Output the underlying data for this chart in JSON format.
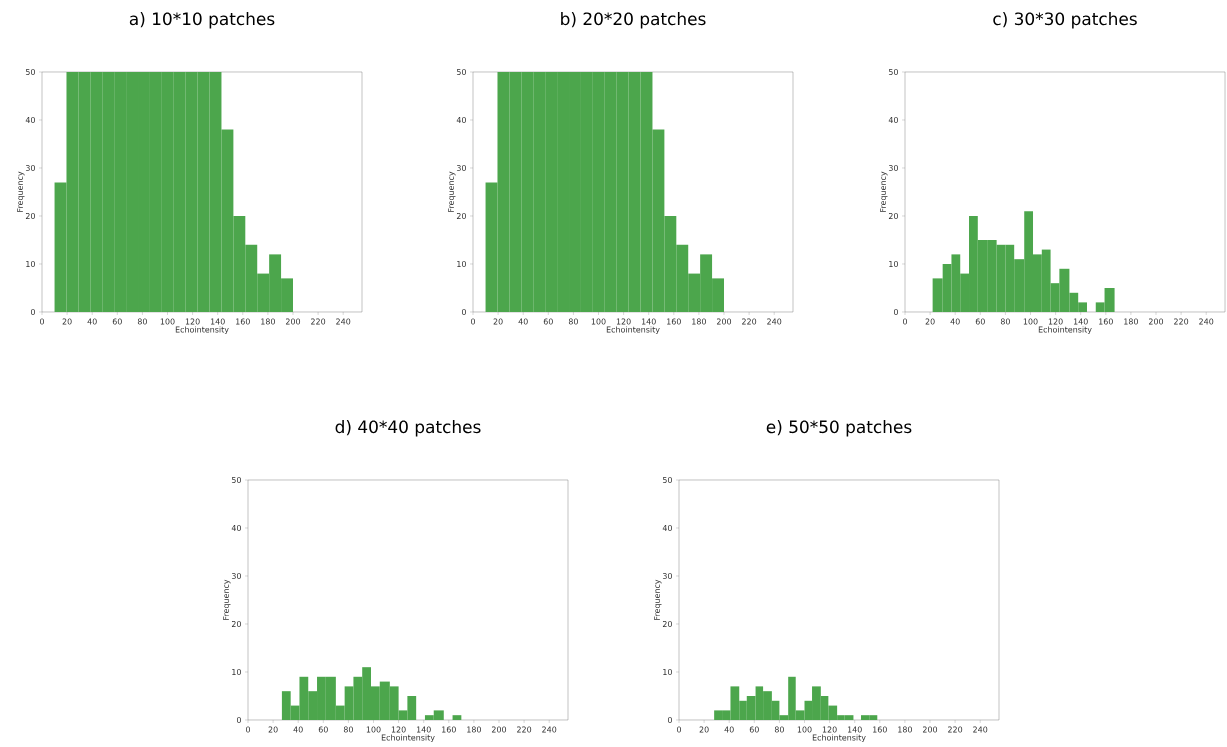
{
  "chart_data": [
    {
      "type": "histogram",
      "title": "a) 10*10 patches",
      "xlabel": "Echointensity",
      "ylabel": "Frequency",
      "color": "#4ca64c",
      "xlim": [
        0,
        255
      ],
      "ylim": [
        0,
        50
      ],
      "xticks": [
        0,
        20,
        40,
        60,
        80,
        100,
        120,
        140,
        160,
        180,
        200,
        220,
        240
      ],
      "yticks": [
        0,
        10,
        20,
        30,
        40,
        50
      ],
      "bins": [
        10,
        19.5,
        29,
        38.5,
        48,
        57.5,
        67,
        76.5,
        86,
        95.5,
        105,
        114.5,
        124,
        133.5,
        143,
        152.5,
        162,
        171.5,
        181,
        190.5,
        200
      ],
      "values": [
        27,
        50,
        50,
        50,
        50,
        50,
        50,
        50,
        50,
        50,
        50,
        50,
        50,
        50,
        38,
        20,
        14,
        8,
        12,
        7
      ]
    },
    {
      "type": "histogram",
      "title": "b) 20*20 patches",
      "xlabel": "Echointensity",
      "ylabel": "Frequency",
      "color": "#4ca64c",
      "xlim": [
        0,
        255
      ],
      "ylim": [
        0,
        50
      ],
      "xticks": [
        0,
        20,
        40,
        60,
        80,
        100,
        120,
        140,
        160,
        180,
        200,
        220,
        240
      ],
      "yticks": [
        0,
        10,
        20,
        30,
        40,
        50
      ],
      "bins": [
        10,
        19.5,
        29,
        38.5,
        48,
        57.5,
        67,
        76.5,
        86,
        95.5,
        105,
        114.5,
        124,
        133.5,
        143,
        152.5,
        162,
        171.5,
        181,
        190.5,
        200
      ],
      "values": [
        27,
        50,
        50,
        50,
        50,
        50,
        50,
        50,
        50,
        50,
        50,
        50,
        50,
        50,
        38,
        20,
        14,
        8,
        12,
        7
      ]
    },
    {
      "type": "histogram",
      "title": "c) 30*30 patches",
      "xlabel": "Echointensity",
      "ylabel": "Frequency",
      "color": "#4ca64c",
      "xlim": [
        0,
        255
      ],
      "ylim": [
        0,
        50
      ],
      "xticks": [
        0,
        20,
        40,
        60,
        80,
        100,
        120,
        140,
        160,
        180,
        200,
        220,
        240
      ],
      "yticks": [
        0,
        10,
        20,
        30,
        40,
        50
      ],
      "bins": [
        22,
        30,
        37,
        44,
        51,
        58,
        66,
        73,
        80,
        87,
        95,
        102,
        109,
        116,
        123,
        131,
        138,
        145,
        152,
        159,
        167
      ],
      "values": [
        7,
        10,
        12,
        8,
        20,
        15,
        15,
        14,
        14,
        11,
        21,
        12,
        13,
        6,
        9,
        4,
        2,
        0,
        2,
        5
      ]
    },
    {
      "type": "histogram",
      "title": "d) 40*40 patches",
      "xlabel": "Echointensity",
      "ylabel": "Frequency",
      "color": "#4ca64c",
      "xlim": [
        0,
        255
      ],
      "ylim": [
        0,
        50
      ],
      "xticks": [
        0,
        20,
        40,
        60,
        80,
        100,
        120,
        140,
        160,
        180,
        200,
        220,
        240
      ],
      "yticks": [
        0,
        10,
        20,
        30,
        40,
        50
      ],
      "bins": [
        27,
        34,
        41,
        48,
        55,
        62,
        70,
        77,
        84,
        91,
        98,
        105,
        113,
        120,
        127,
        134,
        141,
        148,
        156,
        163,
        170
      ],
      "values": [
        6,
        3,
        9,
        6,
        9,
        9,
        3,
        7,
        9,
        11,
        7,
        8,
        7,
        2,
        5,
        0,
        1,
        2,
        0,
        1
      ]
    },
    {
      "type": "histogram",
      "title": "e) 50*50 patches",
      "xlabel": "Echointensity",
      "ylabel": "Frequency",
      "color": "#4ca64c",
      "xlim": [
        0,
        255
      ],
      "ylim": [
        0,
        50
      ],
      "xticks": [
        0,
        20,
        40,
        60,
        80,
        100,
        120,
        140,
        160,
        180,
        200,
        220,
        240
      ],
      "yticks": [
        0,
        10,
        20,
        30,
        40,
        50
      ],
      "bins": [
        28,
        35,
        41,
        48,
        54,
        61,
        67,
        74,
        80,
        87,
        93,
        100,
        106,
        113,
        119,
        126,
        132,
        139,
        145,
        152,
        158
      ],
      "values": [
        2,
        2,
        7,
        4,
        5,
        7,
        6,
        4,
        1,
        9,
        2,
        4,
        7,
        5,
        3,
        1,
        1,
        0,
        1,
        1
      ]
    }
  ]
}
